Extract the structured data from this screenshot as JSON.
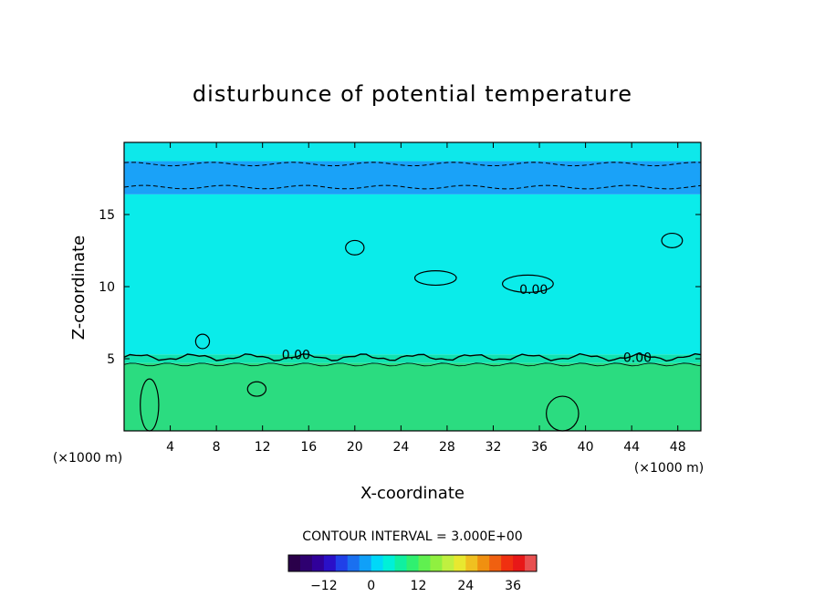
{
  "chart_data": {
    "type": "heatmap",
    "title": "disturbunce of potential temperature",
    "xlabel": "X-coordinate",
    "ylabel": "Z-coordinate",
    "x_unit": "(×1000 m)",
    "y_unit": "(×1000 m)",
    "xlim": [
      0,
      50
    ],
    "ylim": [
      0,
      20
    ],
    "xticks": [
      4,
      8,
      12,
      16,
      20,
      24,
      28,
      32,
      36,
      40,
      44,
      48
    ],
    "yticks": [
      5,
      10,
      15
    ],
    "contour_interval_label": "CONTOUR INTERVAL = 3.000E+00",
    "contour_label_text": "0.00",
    "contour_label_positions": [
      [
        14.9,
        5.3
      ],
      [
        35.5,
        9.8
      ],
      [
        44.5,
        5.1
      ]
    ],
    "field_bands": [
      {
        "z_from": 0,
        "z_to": 4.7,
        "color": "#2bdc80"
      },
      {
        "z_from": 4.7,
        "z_to": 5.3,
        "color": "#12e2b0"
      },
      {
        "z_from": 5.3,
        "z_to": 16.4,
        "color": "#0aecea"
      },
      {
        "z_from": 16.4,
        "z_to": 18.7,
        "color": "#1aa2f8"
      },
      {
        "z_from": 18.7,
        "z_to": 20,
        "color": "#0ee8ea"
      }
    ],
    "zero_contour_level_z": 5.1,
    "negative_contours_z": [
      16.9,
      18.5
    ],
    "colorbar": {
      "vmin": -21,
      "vmax": 42,
      "ticks": [
        -12,
        0,
        12,
        24,
        36
      ],
      "tick_labels": [
        "−12",
        "0",
        "12",
        "24",
        "36"
      ],
      "colors": [
        "#2a004a",
        "#2e0070",
        "#30009a",
        "#2a10c8",
        "#2040e8",
        "#1a70f0",
        "#10a0f8",
        "#00d8f8",
        "#00f0d8",
        "#10f0a0",
        "#30f070",
        "#60f050",
        "#90f040",
        "#c0f040",
        "#e8e830",
        "#f0c020",
        "#f09010",
        "#f06010",
        "#f03010",
        "#e81818",
        "#e85050"
      ]
    }
  }
}
